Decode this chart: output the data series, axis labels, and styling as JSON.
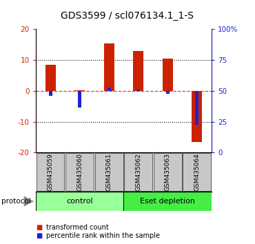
{
  "title": "GDS3599 / scl076134.1_1-S",
  "samples": [
    "GSM435059",
    "GSM435060",
    "GSM435061",
    "GSM435062",
    "GSM435063",
    "GSM435064"
  ],
  "red_values": [
    8.5,
    0.2,
    15.5,
    13.0,
    10.5,
    -16.5
  ],
  "blue_values": [
    -1.5,
    -5.5,
    1.0,
    0.5,
    -1.0,
    -11.0
  ],
  "ylim": [
    -20,
    20
  ],
  "yticks_left": [
    -20,
    -10,
    0,
    10,
    20
  ],
  "yticks_right_labels": [
    "0",
    "25",
    "50",
    "75",
    "100%"
  ],
  "yticks_right_positions": [
    -20,
    -10,
    0,
    10,
    20
  ],
  "red_color": "#CC2200",
  "blue_color": "#2222CC",
  "groups": [
    {
      "label": "control",
      "indices": [
        0,
        1,
        2
      ],
      "color": "#99FF99"
    },
    {
      "label": "Eset depletion",
      "indices": [
        3,
        4,
        5
      ],
      "color": "#44EE44"
    }
  ],
  "protocol_label": "protocol",
  "legend_red": "transformed count",
  "legend_blue": "percentile rank within the sample",
  "background_color": "#ffffff",
  "red_bar_width": 0.35,
  "blue_bar_width": 0.12,
  "title_fontsize": 10,
  "tick_fontsize": 7.5,
  "sample_fontsize": 6.5,
  "group_fontsize": 8,
  "legend_fontsize": 7
}
